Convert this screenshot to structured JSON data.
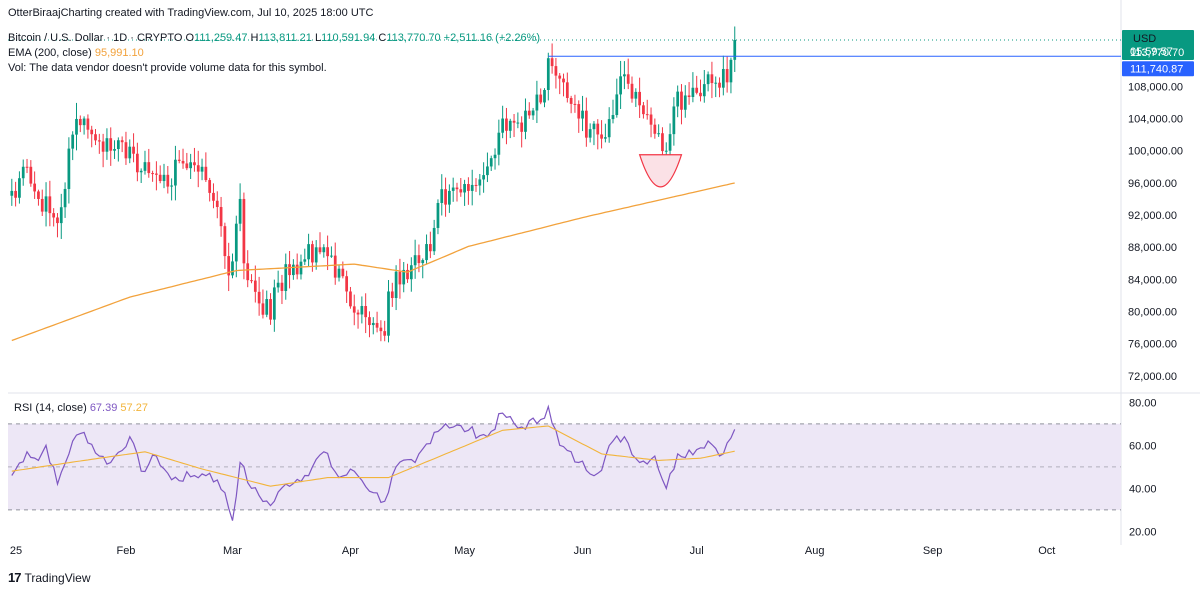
{
  "header": {
    "author_line": "OtterBiraajCharting created with TradingView.com, Jul 10, 2025 18:00 UTC",
    "pair": "Bitcoin / U.S. Dollar · 1D · CRYPTO",
    "o_label": "O",
    "o_value": "111,259.47",
    "h_label": "H",
    "h_value": "113,811.21",
    "l_label": "L",
    "l_value": "110,591.94",
    "c_label": "C",
    "c_value": "113,770.70",
    "change": "+2,511.16 (+2.26%)",
    "ema_label": "EMA (200, close)",
    "ema_value": "95,991.10",
    "vol_note": "Vol: The data vendor doesn't provide volume data for this symbol."
  },
  "currency": "USD",
  "logo_text": "TradingView",
  "colors": {
    "up": "#089981",
    "down": "#f23645",
    "ema": "#f2a23c",
    "rsi": "#7e57c2",
    "rsi_ma": "#f2b43a",
    "resistance": "#2962ff",
    "cup": "#f23645",
    "rsi_band": "#ede7f6"
  },
  "chart_data": [
    {
      "type": "candlestick",
      "title": "Bitcoin / U.S. Dollar · 1D · CRYPTO",
      "x_ticks": [
        "25",
        "Feb",
        "Mar",
        "Apr",
        "May",
        "Jun",
        "Jul",
        "Aug",
        "Sep",
        "Oct"
      ],
      "y_ticks": [
        72000,
        76000,
        80000,
        84000,
        88000,
        92000,
        96000,
        100000,
        104000,
        108000
      ],
      "y_tick_labels": [
        "72,000.00",
        "76,000.00",
        "80,000.00",
        "84,000.00",
        "88,000.00",
        "92,000.00",
        "96,000.00",
        "100,000.00",
        "104,000.00",
        "108,000.00"
      ],
      "ylim": [
        70000,
        116500
      ],
      "price_tags": [
        {
          "label": "113,770.70",
          "value": 113770.7,
          "kind": "last"
        },
        {
          "label": "05:59:57",
          "kind": "countdown"
        },
        {
          "label": "111,740.87",
          "value": 111740.87,
          "kind": "level"
        }
      ],
      "resistance_level": 111740.87,
      "ema_series": [
        [
          "2025-01-01",
          76400
        ],
        [
          "2025-02-01",
          81800
        ],
        [
          "2025-03-01",
          85100
        ],
        [
          "2025-04-01",
          85900
        ],
        [
          "2025-04-15",
          84900
        ],
        [
          "2025-05-01",
          88100
        ],
        [
          "2025-06-01",
          91800
        ],
        [
          "2025-07-10",
          95991
        ]
      ],
      "cup": {
        "from": "2025-06-15",
        "to": "2025-06-26",
        "top": 99500,
        "bottom": 95500
      },
      "anchors": [
        [
          "2025-01-01",
          95000
        ],
        [
          "2025-01-05",
          98000
        ],
        [
          "2025-01-08",
          94000
        ],
        [
          "2025-01-13",
          91000
        ],
        [
          "2025-01-17",
          102000
        ],
        [
          "2025-01-20",
          104000
        ],
        [
          "2025-01-27",
          100000
        ],
        [
          "2025-02-01",
          100500
        ],
        [
          "2025-02-04",
          97500
        ],
        [
          "2025-02-10",
          97000
        ],
        [
          "2025-02-20",
          98000
        ],
        [
          "2025-02-24",
          93000
        ],
        [
          "2025-02-27",
          84500
        ],
        [
          "2025-03-02",
          94000
        ],
        [
          "2025-03-03",
          86000
        ],
        [
          "2025-03-10",
          79000
        ],
        [
          "2025-03-11",
          83000
        ],
        [
          "2025-03-19",
          86500
        ],
        [
          "2025-03-24",
          88000
        ],
        [
          "2025-03-30",
          82500
        ],
        [
          "2025-04-07",
          78000
        ],
        [
          "2025-04-09",
          77000
        ],
        [
          "2025-04-10",
          82500
        ],
        [
          "2025-04-21",
          87500
        ],
        [
          "2025-04-23",
          93500
        ],
        [
          "2025-05-01",
          95000
        ],
        [
          "2025-05-08",
          99500
        ],
        [
          "2025-05-10",
          104000
        ],
        [
          "2025-05-14",
          103500
        ],
        [
          "2025-05-20",
          106000
        ],
        [
          "2025-05-22",
          111500
        ],
        [
          "2025-05-26",
          108500
        ],
        [
          "2025-05-30",
          104000
        ],
        [
          "2025-06-05",
          101500
        ],
        [
          "2025-06-09",
          107000
        ],
        [
          "2025-06-11",
          109500
        ],
        [
          "2025-06-17",
          104500
        ],
        [
          "2025-06-22",
          100000
        ],
        [
          "2025-06-24",
          105500
        ],
        [
          "2025-06-30",
          107200
        ],
        [
          "2025-07-03",
          109500
        ],
        [
          "2025-07-08",
          108500
        ],
        [
          "2025-07-09",
          111300
        ],
        [
          "2025-07-10",
          113770
        ]
      ]
    },
    {
      "type": "line",
      "title": "RSI (14, close)",
      "series": [
        {
          "name": "RSI (14, close)",
          "last": "67.39"
        },
        {
          "name": "RSI MA",
          "last": "57.27"
        }
      ],
      "y_ticks": [
        20,
        40,
        60,
        80
      ],
      "y_tick_labels": [
        "20.00",
        "40.00",
        "60.00",
        "80.00"
      ],
      "ylim": [
        16,
        82
      ],
      "bands": [
        30,
        50,
        70
      ],
      "rsi_points": [
        [
          "2025-01-01",
          46
        ],
        [
          "2025-01-05",
          57
        ],
        [
          "2025-01-08",
          53
        ],
        [
          "2025-01-10",
          60
        ],
        [
          "2025-01-13",
          42
        ],
        [
          "2025-01-17",
          62
        ],
        [
          "2025-01-20",
          66
        ],
        [
          "2025-01-24",
          55
        ],
        [
          "2025-01-27",
          52
        ],
        [
          "2025-02-01",
          64
        ],
        [
          "2025-02-04",
          48
        ],
        [
          "2025-02-08",
          55
        ],
        [
          "2025-02-12",
          44
        ],
        [
          "2025-02-18",
          46
        ],
        [
          "2025-02-22",
          47
        ],
        [
          "2025-02-26",
          38
        ],
        [
          "2025-02-28",
          25
        ],
        [
          "2025-03-02",
          52
        ],
        [
          "2025-03-05",
          40
        ],
        [
          "2025-03-10",
          32
        ],
        [
          "2025-03-14",
          42
        ],
        [
          "2025-03-19",
          46
        ],
        [
          "2025-03-24",
          57
        ],
        [
          "2025-03-28",
          45
        ],
        [
          "2025-04-01",
          48
        ],
        [
          "2025-04-06",
          38
        ],
        [
          "2025-04-09",
          34
        ],
        [
          "2025-04-12",
          50
        ],
        [
          "2025-04-17",
          52
        ],
        [
          "2025-04-22",
          66
        ],
        [
          "2025-04-25",
          70
        ],
        [
          "2025-05-01",
          67
        ],
        [
          "2025-05-06",
          64
        ],
        [
          "2025-05-10",
          75
        ],
        [
          "2025-05-14",
          68
        ],
        [
          "2025-05-20",
          72
        ],
        [
          "2025-05-22",
          78
        ],
        [
          "2025-05-25",
          60
        ],
        [
          "2025-05-30",
          52
        ],
        [
          "2025-06-04",
          47
        ],
        [
          "2025-06-08",
          62
        ],
        [
          "2025-06-11",
          64
        ],
        [
          "2025-06-15",
          52
        ],
        [
          "2025-06-19",
          55
        ],
        [
          "2025-06-22",
          40
        ],
        [
          "2025-06-25",
          56
        ],
        [
          "2025-06-30",
          58
        ],
        [
          "2025-07-03",
          62
        ],
        [
          "2025-07-07",
          56
        ],
        [
          "2025-07-10",
          67.39
        ]
      ],
      "rsi_ma_points": [
        [
          "2025-01-01",
          48
        ],
        [
          "2025-01-20",
          53
        ],
        [
          "2025-02-05",
          57
        ],
        [
          "2025-02-20",
          49
        ],
        [
          "2025-03-10",
          41
        ],
        [
          "2025-03-25",
          45
        ],
        [
          "2025-04-10",
          45
        ],
        [
          "2025-04-25",
          56
        ],
        [
          "2025-05-10",
          67
        ],
        [
          "2025-05-22",
          69
        ],
        [
          "2025-06-05",
          56
        ],
        [
          "2025-06-20",
          53
        ],
        [
          "2025-07-01",
          54
        ],
        [
          "2025-07-10",
          57.27
        ]
      ]
    }
  ]
}
